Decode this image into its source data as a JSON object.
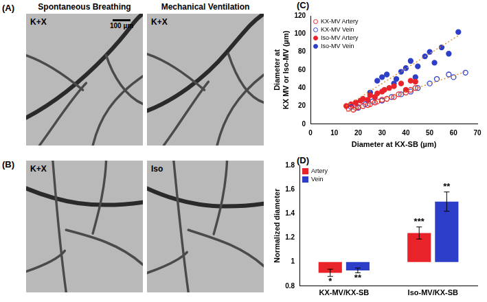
{
  "panels": [
    {
      "label": "(A)",
      "images": [
        {
          "title": "Spontaneous Breathing",
          "tag": "K+X",
          "scale_bar": "100 µm"
        },
        {
          "title": "Mechanical Ventilation",
          "tag": "K+X"
        }
      ]
    },
    {
      "label": "(B)",
      "images": [
        {
          "tag": "K+X"
        },
        {
          "tag": "Iso"
        }
      ]
    }
  ],
  "chart_data": [
    {
      "type": "scatter",
      "panel_label": "(C)",
      "x_label": "Diameter at KX-SB (µm)",
      "y_label": [
        "Diameter at",
        "KX MV or Iso-MV (µm)"
      ],
      "xlim": [
        0,
        70
      ],
      "xticks": [
        0,
        10,
        20,
        30,
        40,
        50,
        60,
        70
      ],
      "ylim": [
        0,
        120
      ],
      "yticks": [
        0,
        20,
        40,
        60,
        80,
        100,
        120
      ],
      "grid": false,
      "legend": "top-left",
      "series": [
        {
          "name": "KX-MV Artery",
          "color": "#e8242a",
          "marker": "open_circle",
          "x": [
            16,
            18,
            19,
            20,
            22,
            24,
            25,
            27,
            28,
            30,
            32,
            35,
            37,
            40,
            42,
            44
          ],
          "values": [
            17,
            16,
            18,
            19,
            20,
            21,
            22,
            24,
            25,
            27,
            28,
            30,
            33,
            35,
            38,
            40
          ]
        },
        {
          "name": "KX-MV Vein",
          "color": "#2d3ec9",
          "marker": "open_circle",
          "x": [
            17,
            20,
            23,
            26,
            30,
            34,
            38,
            42,
            45,
            50,
            53,
            58,
            60,
            65
          ],
          "values": [
            19,
            18,
            22,
            25,
            26,
            30,
            33,
            36,
            40,
            45,
            50,
            55,
            52,
            57
          ]
        },
        {
          "name": "Iso-MV Artery",
          "color": "#e8242a",
          "marker": "circle",
          "x": [
            15,
            17,
            19,
            21,
            22,
            24,
            25,
            27,
            28,
            30,
            31,
            33,
            35,
            38,
            40,
            42,
            44
          ],
          "values": [
            20,
            22,
            24,
            26,
            28,
            27,
            32,
            30,
            34,
            36,
            38,
            40,
            42,
            45,
            38,
            48,
            47
          ]
        },
        {
          "name": "Iso-MV Vein",
          "color": "#2d3ec9",
          "marker": "circle",
          "x": [
            25,
            28,
            30,
            32,
            35,
            36,
            38,
            40,
            42,
            44,
            45,
            48,
            50,
            52,
            55,
            58,
            62
          ],
          "values": [
            35,
            48,
            52,
            55,
            45,
            50,
            58,
            62,
            70,
            52,
            64,
            75,
            80,
            68,
            85,
            78,
            102
          ]
        }
      ],
      "trend_lines": [
        {
          "color": "#e69138",
          "line_style": "dotted",
          "x": [
            15,
            65
          ],
          "values": [
            14,
            58
          ]
        },
        {
          "color": "#e69138",
          "line_style": "dotted",
          "x": [
            15,
            62
          ],
          "values": [
            20,
            98
          ]
        }
      ]
    },
    {
      "type": "bar",
      "panel_label": "(D)",
      "y_label": "Normalized diameter",
      "categories": [
        "KX-MV/KX-SB",
        "Iso-MV/KX-SB"
      ],
      "ylim": [
        0.8,
        1.8
      ],
      "yticks": [
        0.8,
        1,
        1.2,
        1.4,
        1.6,
        1.8
      ],
      "baseline": 1,
      "grid": false,
      "legend": "top-left",
      "series": [
        {
          "name": "Artery",
          "color": "#e8242a",
          "values": [
            0.91,
            1.24
          ],
          "errors": [
            0.03,
            0.05
          ],
          "significance": [
            "*",
            "***"
          ]
        },
        {
          "name": "Vein",
          "color": "#2d3ec9",
          "values": [
            0.93,
            1.5
          ],
          "errors": [
            0.02,
            0.08
          ],
          "significance": [
            "**",
            "**"
          ]
        }
      ]
    }
  ]
}
